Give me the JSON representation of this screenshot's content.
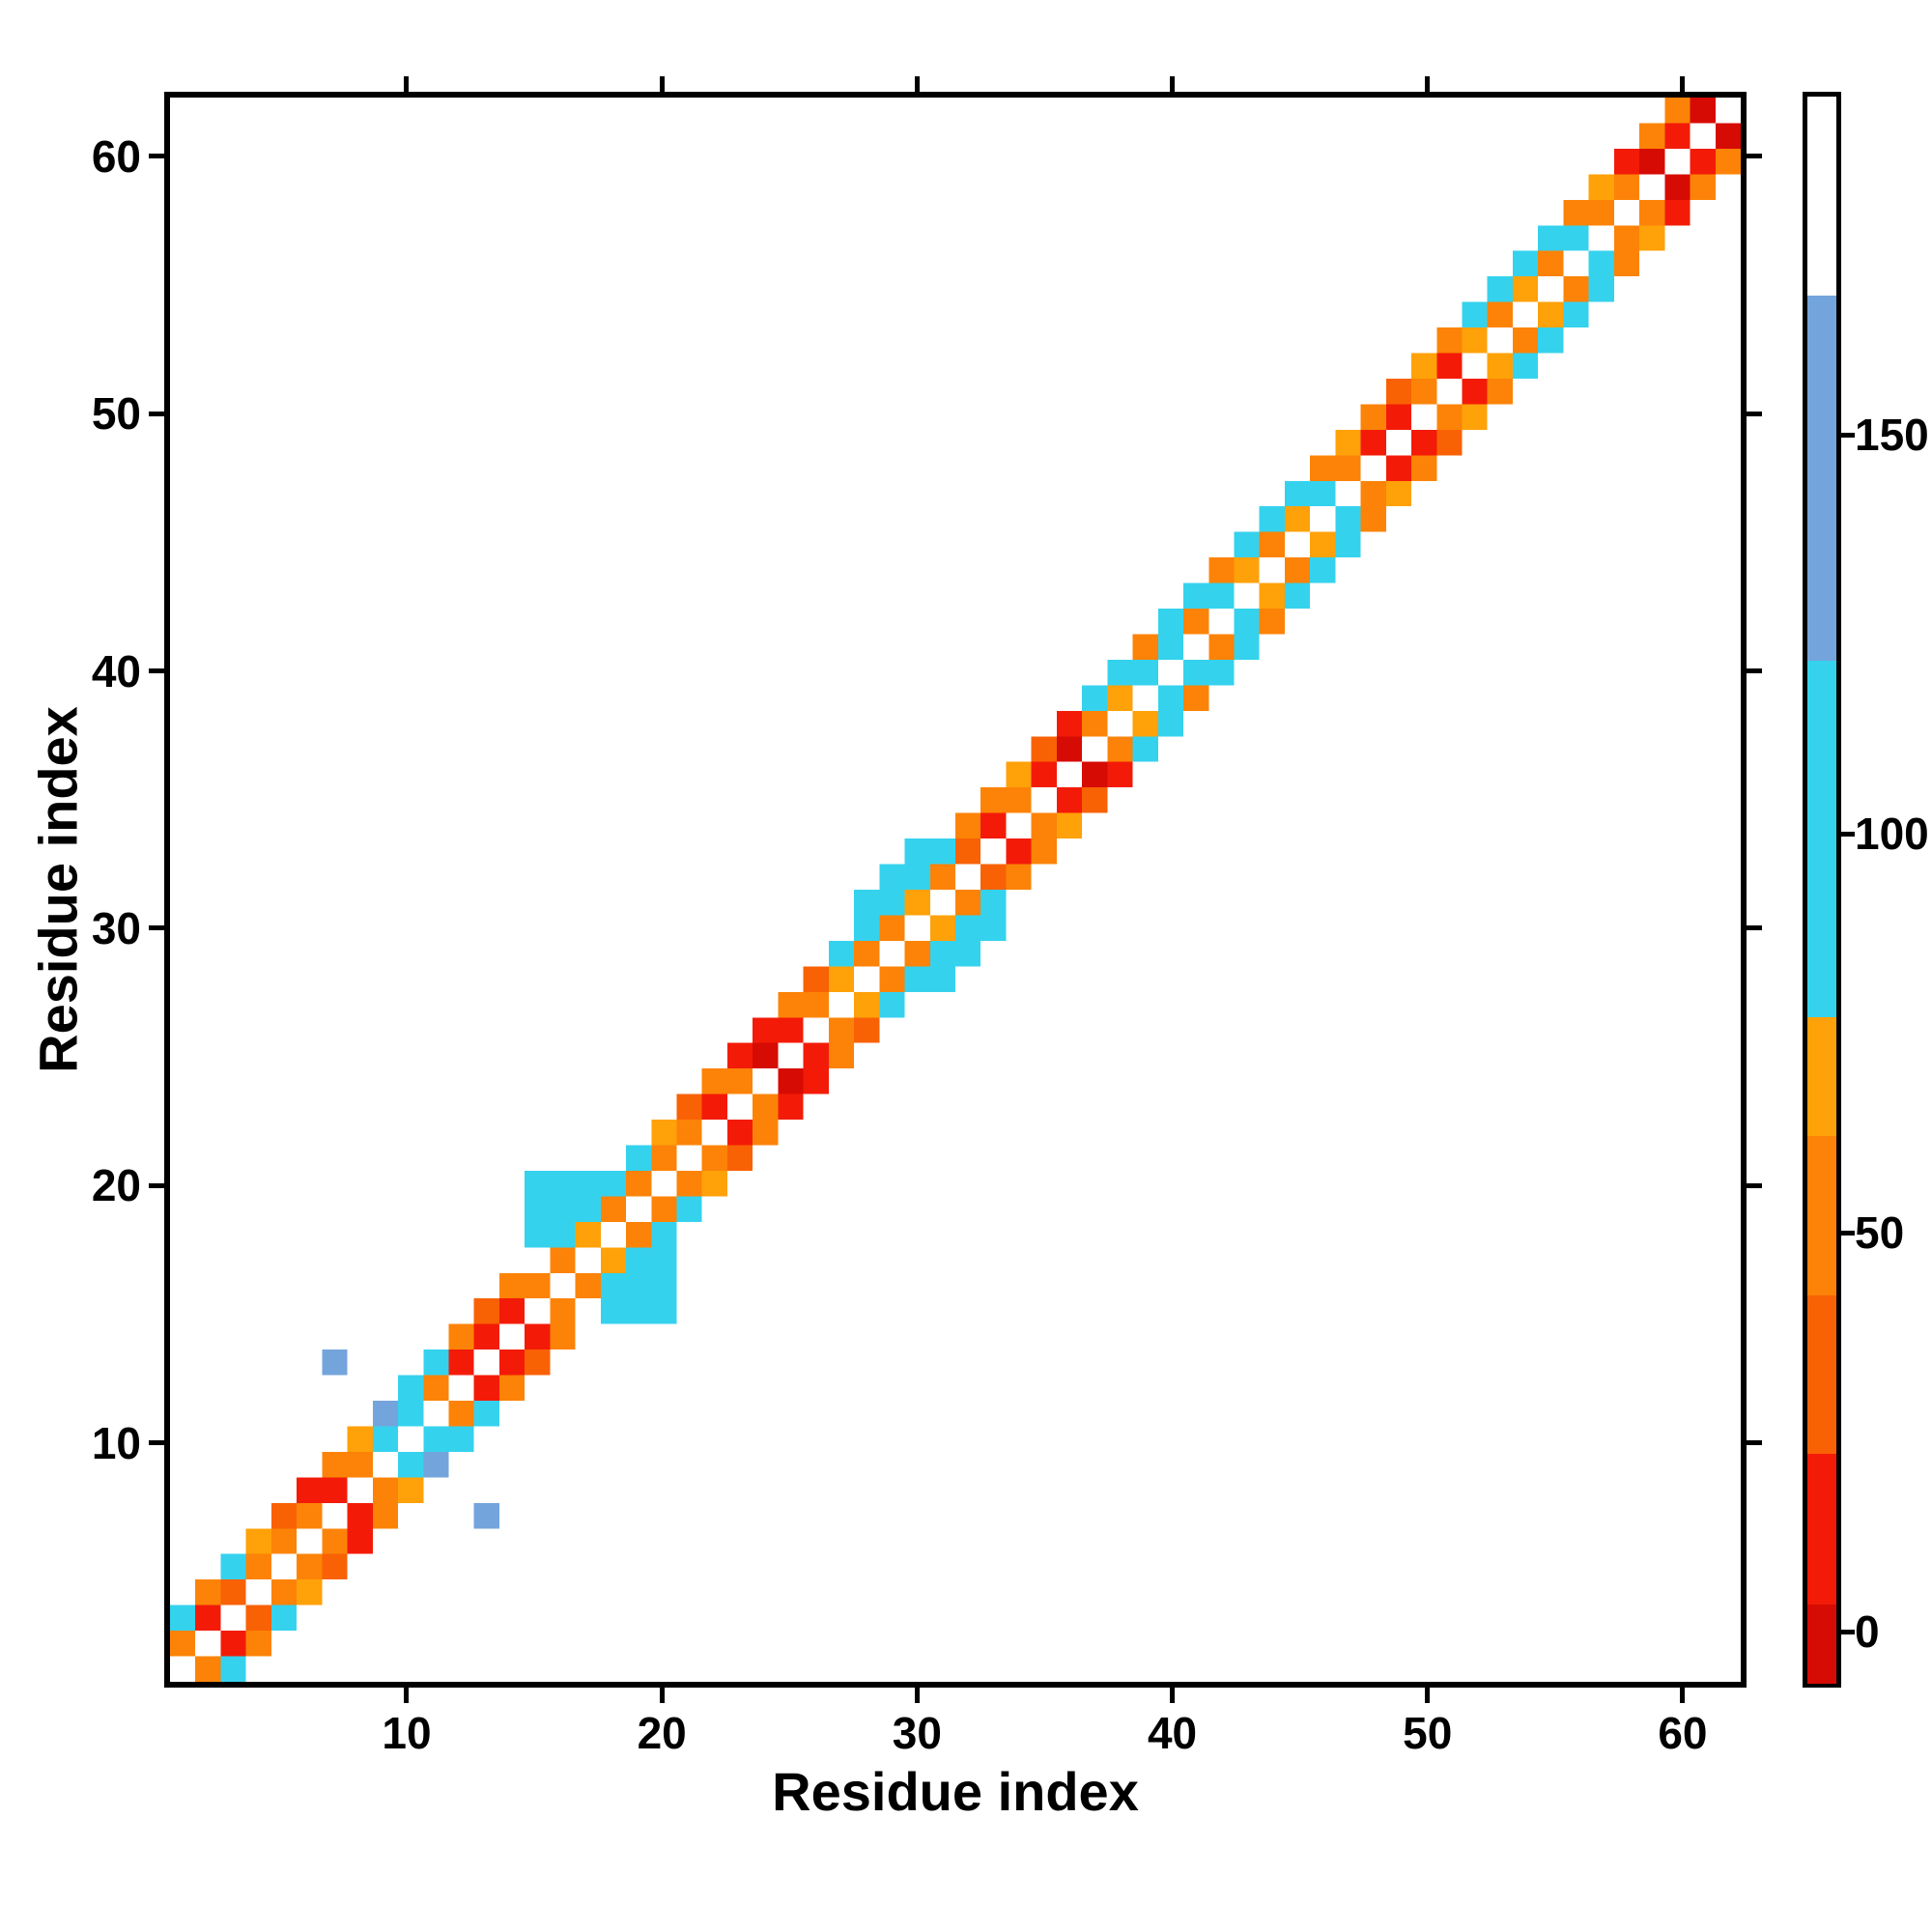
{
  "figure": {
    "background_color": "#ffffff",
    "frame_color": "#000000"
  },
  "chart_data": {
    "type": "heatmap",
    "title": "",
    "xlabel": "Residue index",
    "ylabel": "Residue index",
    "n_residues": 62,
    "axis_range": [
      0.5,
      62.5
    ],
    "x_ticks": [
      10,
      20,
      30,
      40,
      50,
      60
    ],
    "y_ticks": [
      10,
      20,
      30,
      40,
      50,
      60
    ],
    "grid": false,
    "symmetric": true,
    "empty_cell_color": "#ffffff",
    "colorbar": {
      "position": "right",
      "ticks": [
        0,
        50,
        100,
        150
      ],
      "range": [
        -7,
        193
      ],
      "bands": [
        {
          "from": -7,
          "to": 3,
          "color": "#d60b04"
        },
        {
          "from": 3,
          "to": 22,
          "color": "#f31b07"
        },
        {
          "from": 22,
          "to": 42,
          "color": "#f96105"
        },
        {
          "from": 42,
          "to": 62,
          "color": "#fc8307"
        },
        {
          "from": 62,
          "to": 77,
          "color": "#ffa108"
        },
        {
          "from": 77,
          "to": 122,
          "color": "#35d2ee"
        },
        {
          "from": 122,
          "to": 168,
          "color": "#74a4dc"
        },
        {
          "from": 168,
          "to": 193,
          "color": "#ffffff"
        }
      ]
    },
    "cells": [
      [
        1,
        2,
        50
      ],
      [
        1,
        3,
        100
      ],
      [
        2,
        3,
        12
      ],
      [
        2,
        4,
        50
      ],
      [
        3,
        4,
        30
      ],
      [
        3,
        5,
        100
      ],
      [
        4,
        5,
        50
      ],
      [
        4,
        6,
        70
      ],
      [
        5,
        6,
        50
      ],
      [
        5,
        7,
        30
      ],
      [
        6,
        7,
        50
      ],
      [
        6,
        8,
        12
      ],
      [
        7,
        8,
        12
      ],
      [
        7,
        9,
        50
      ],
      [
        7,
        13,
        140
      ],
      [
        8,
        9,
        50
      ],
      [
        8,
        10,
        70
      ],
      [
        9,
        10,
        100
      ],
      [
        9,
        11,
        140
      ],
      [
        10,
        11,
        100
      ],
      [
        10,
        12,
        100
      ],
      [
        11,
        12,
        50
      ],
      [
        11,
        13,
        100
      ],
      [
        12,
        13,
        12
      ],
      [
        12,
        14,
        50
      ],
      [
        13,
        14,
        12
      ],
      [
        13,
        15,
        30
      ],
      [
        14,
        15,
        12
      ],
      [
        14,
        16,
        50
      ],
      [
        15,
        16,
        50
      ],
      [
        15,
        18,
        100
      ],
      [
        15,
        19,
        100
      ],
      [
        15,
        20,
        100
      ],
      [
        16,
        17,
        50
      ],
      [
        16,
        18,
        100
      ],
      [
        16,
        19,
        100
      ],
      [
        16,
        20,
        100
      ],
      [
        17,
        18,
        70
      ],
      [
        17,
        19,
        100
      ],
      [
        17,
        20,
        100
      ],
      [
        18,
        19,
        50
      ],
      [
        18,
        20,
        100
      ],
      [
        19,
        20,
        50
      ],
      [
        19,
        21,
        100
      ],
      [
        20,
        21,
        50
      ],
      [
        20,
        22,
        70
      ],
      [
        21,
        22,
        50
      ],
      [
        21,
        23,
        30
      ],
      [
        22,
        23,
        12
      ],
      [
        22,
        24,
        50
      ],
      [
        23,
        24,
        50
      ],
      [
        23,
        25,
        12
      ],
      [
        24,
        25,
        0
      ],
      [
        24,
        26,
        12
      ],
      [
        25,
        26,
        12
      ],
      [
        25,
        27,
        50
      ],
      [
        26,
        27,
        50
      ],
      [
        26,
        28,
        30
      ],
      [
        27,
        28,
        70
      ],
      [
        27,
        29,
        100
      ],
      [
        28,
        29,
        50
      ],
      [
        28,
        30,
        100
      ],
      [
        28,
        31,
        100
      ],
      [
        29,
        30,
        50
      ],
      [
        29,
        31,
        100
      ],
      [
        29,
        32,
        100
      ],
      [
        30,
        31,
        70
      ],
      [
        30,
        32,
        100
      ],
      [
        30,
        33,
        100
      ],
      [
        31,
        32,
        50
      ],
      [
        31,
        33,
        100
      ],
      [
        32,
        33,
        30
      ],
      [
        32,
        34,
        50
      ],
      [
        33,
        34,
        12
      ],
      [
        33,
        35,
        50
      ],
      [
        34,
        35,
        50
      ],
      [
        34,
        36,
        70
      ],
      [
        35,
        36,
        12
      ],
      [
        35,
        37,
        30
      ],
      [
        36,
        37,
        0
      ],
      [
        36,
        38,
        12
      ],
      [
        37,
        38,
        50
      ],
      [
        37,
        39,
        100
      ],
      [
        38,
        39,
        70
      ],
      [
        38,
        40,
        100
      ],
      [
        39,
        40,
        100
      ],
      [
        39,
        41,
        50
      ],
      [
        40,
        41,
        100
      ],
      [
        40,
        42,
        100
      ],
      [
        41,
        42,
        50
      ],
      [
        41,
        43,
        100
      ],
      [
        42,
        43,
        100
      ],
      [
        42,
        44,
        50
      ],
      [
        43,
        44,
        70
      ],
      [
        43,
        45,
        100
      ],
      [
        44,
        45,
        50
      ],
      [
        44,
        46,
        100
      ],
      [
        45,
        46,
        70
      ],
      [
        45,
        47,
        100
      ],
      [
        46,
        47,
        100
      ],
      [
        46,
        48,
        50
      ],
      [
        47,
        48,
        50
      ],
      [
        47,
        49,
        70
      ],
      [
        48,
        49,
        12
      ],
      [
        48,
        50,
        50
      ],
      [
        49,
        50,
        12
      ],
      [
        49,
        51,
        30
      ],
      [
        50,
        51,
        50
      ],
      [
        50,
        52,
        70
      ],
      [
        51,
        52,
        12
      ],
      [
        51,
        53,
        50
      ],
      [
        52,
        53,
        70
      ],
      [
        52,
        54,
        100
      ],
      [
        53,
        54,
        50
      ],
      [
        53,
        55,
        100
      ],
      [
        54,
        55,
        70
      ],
      [
        54,
        56,
        100
      ],
      [
        55,
        56,
        50
      ],
      [
        55,
        57,
        100
      ],
      [
        56,
        57,
        100
      ],
      [
        56,
        58,
        50
      ],
      [
        57,
        58,
        50
      ],
      [
        57,
        59,
        70
      ],
      [
        58,
        59,
        50
      ],
      [
        58,
        60,
        12
      ],
      [
        59,
        60,
        0
      ],
      [
        59,
        61,
        50
      ],
      [
        60,
        61,
        12
      ],
      [
        60,
        62,
        50
      ],
      [
        61,
        62,
        0
      ]
    ]
  }
}
